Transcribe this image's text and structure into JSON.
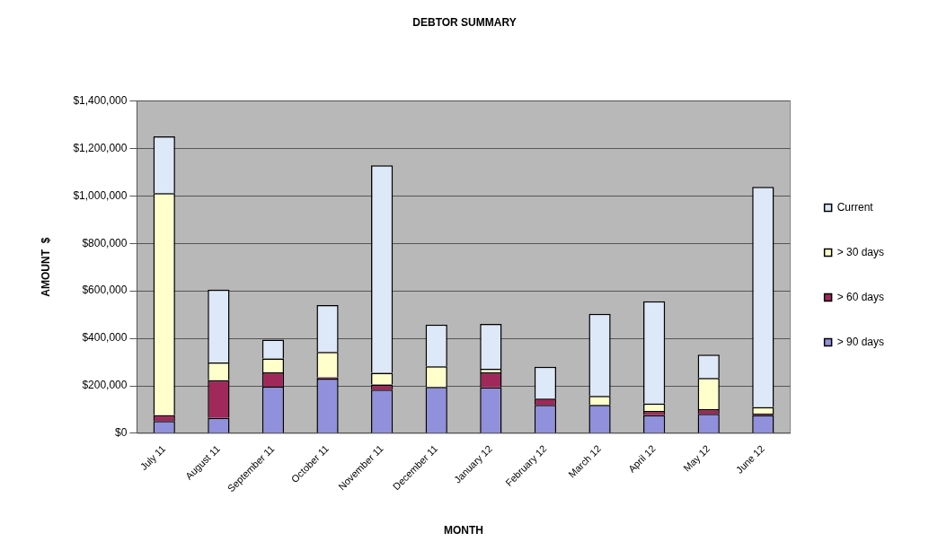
{
  "chart_data": {
    "type": "bar",
    "title": "DEBTOR SUMMARY",
    "xlabel": "MONTH",
    "ylabel": "AMOUNT  $",
    "stacked": true,
    "legend": "right",
    "grid": "y",
    "categories": [
      "July 11",
      "August 11",
      "September 11",
      "October 11",
      "November 11",
      "December 11",
      "January 12",
      "February 12",
      "March 12",
      "April 12",
      "May 12",
      "June 12"
    ],
    "ylim": [
      0,
      1400000
    ],
    "yticks": [
      {
        "value": 0,
        "label": "$0"
      },
      {
        "value": 200000,
        "label": "$200,000"
      },
      {
        "value": 400000,
        "label": "$400,000"
      },
      {
        "value": 600000,
        "label": "$600,000"
      },
      {
        "value": 800000,
        "label": "$800,000"
      },
      {
        "value": 1000000,
        "label": "$1,000,000"
      },
      {
        "value": 1200000,
        "label": "$1,200,000"
      },
      {
        "value": 1400000,
        "label": "$1,400,000"
      }
    ],
    "series": [
      {
        "name": "> 90 days",
        "color": "#9090dc",
        "values": [
          52000,
          65000,
          197000,
          230000,
          184000,
          195000,
          194000,
          120000,
          120000,
          76000,
          82000,
          76000
        ]
      },
      {
        "name": "> 60 days",
        "color": "#a0285a",
        "values": [
          24000,
          159000,
          60000,
          6000,
          22000,
          null,
          63000,
          26000,
          null,
          18000,
          20000,
          7000
        ]
      },
      {
        "name": "> 30 days",
        "color": "#ffffcc",
        "values": [
          935000,
          74000,
          58000,
          107000,
          49000,
          87000,
          15000,
          null,
          38000,
          32000,
          131000,
          27000
        ]
      },
      {
        "name": "Current",
        "color": "#dde8f8",
        "values": [
          239000,
          307000,
          80000,
          197000,
          874000,
          176000,
          189000,
          134000,
          345000,
          430000,
          98000,
          928000
        ]
      }
    ]
  }
}
